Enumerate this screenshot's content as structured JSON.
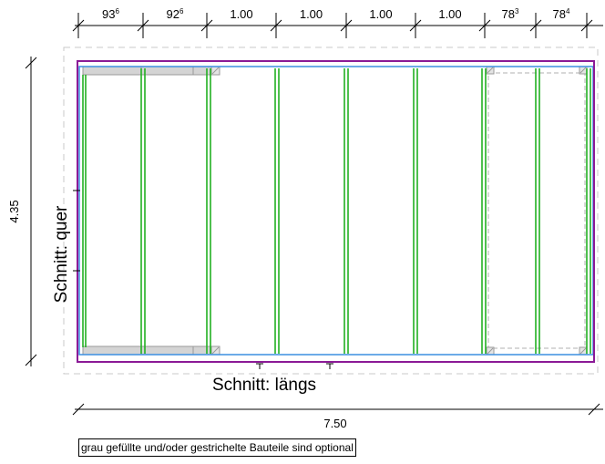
{
  "top_dimensions": [
    {
      "main": "93",
      "sup": "6"
    },
    {
      "main": "92",
      "sup": "6"
    },
    {
      "main": "1.00",
      "sup": ""
    },
    {
      "main": "1.00",
      "sup": ""
    },
    {
      "main": "1.00",
      "sup": ""
    },
    {
      "main": "1.00",
      "sup": ""
    },
    {
      "main": "78",
      "sup": "3"
    },
    {
      "main": "78",
      "sup": "4"
    }
  ],
  "left_dimension": "4.35",
  "bottom_dimension": "7.50",
  "section_quer_label": "Schnitt:  quer",
  "section_laengs_label": "Schnitt:  längs",
  "note": "grau gefüllte und/oder gestrichelte Bauteile sind optional",
  "colors": {
    "outer_frame": "#8b1a96",
    "inner_frame": "#3b8fe0",
    "rafters": "#22b022",
    "optional_fill": "#d4d4d4",
    "optional_stroke": "#9a9a9a",
    "dashed_outline": "#c8c8c8"
  }
}
